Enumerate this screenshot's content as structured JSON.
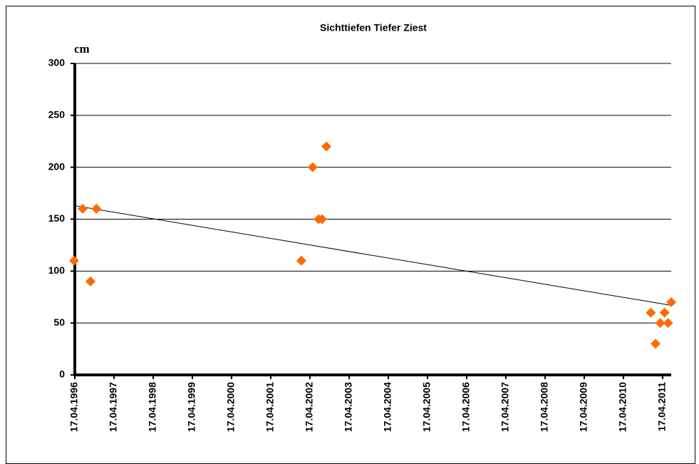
{
  "chart_data": {
    "type": "scatter",
    "title": "Sichttiefen Tiefer Ziest",
    "y_label": "cm",
    "x": [
      1996.27,
      1996.49,
      1996.69,
      1996.84,
      2002.07,
      2002.36,
      2002.51,
      2002.6,
      2002.71,
      2010.99,
      2011.11,
      2011.23,
      2011.34,
      2011.43,
      2011.51
    ],
    "values": [
      110,
      160,
      90,
      160,
      110,
      200,
      150,
      150,
      220,
      60,
      30,
      50,
      60,
      50,
      70
    ],
    "color": "#ff6a00",
    "trendline": {
      "x": [
        1996.29,
        2011.51
      ],
      "values": [
        163,
        67
      ],
      "color": "#000000"
    },
    "xlim": [
      1996.29,
      2011.51
    ],
    "xticks": [
      {
        "value": 1996.29,
        "label": "17.04.1996"
      },
      {
        "value": 1997.29,
        "label": "17.04.1997"
      },
      {
        "value": 1998.29,
        "label": "17.04.1998"
      },
      {
        "value": 1999.29,
        "label": "17.04.1999"
      },
      {
        "value": 2000.29,
        "label": "17.04.2000"
      },
      {
        "value": 2001.29,
        "label": "17.04.2001"
      },
      {
        "value": 2002.29,
        "label": "17.04.2002"
      },
      {
        "value": 2003.29,
        "label": "17.04.2003"
      },
      {
        "value": 2004.29,
        "label": "17.04.2004"
      },
      {
        "value": 2005.29,
        "label": "17.04.2005"
      },
      {
        "value": 2006.29,
        "label": "17.04.2006"
      },
      {
        "value": 2007.29,
        "label": "17.04.2007"
      },
      {
        "value": 2008.29,
        "label": "17.04.2008"
      },
      {
        "value": 2009.29,
        "label": "17.04.2009"
      },
      {
        "value": 2010.29,
        "label": "17.04.2010"
      },
      {
        "value": 2011.29,
        "label": "17.04.2011"
      }
    ],
    "ylim": [
      0,
      300
    ],
    "yticks": [
      0,
      50,
      100,
      150,
      200,
      250,
      300
    ],
    "grid": true
  }
}
